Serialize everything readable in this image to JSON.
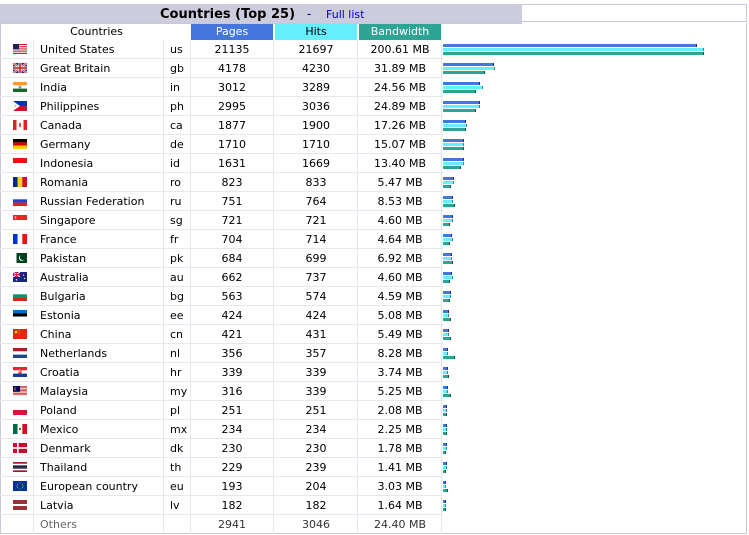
{
  "header": {
    "title": "Countries (Top 25)",
    "separator": "-",
    "full_list_link": "Full list"
  },
  "columns": {
    "countries": "Countries",
    "pages": "Pages",
    "hits": "Hits",
    "bandwidth": "Bandwidth"
  },
  "colors": {
    "pages": "#4477dd",
    "hits": "#66f0ff",
    "bandwidth": "#2ea495",
    "titlebar": "#ccccdd"
  },
  "rows": [
    {
      "country": "United States",
      "code": "us",
      "pages": "21135",
      "hits": "21697",
      "bandwidth": "200.61 MB",
      "flag": "us-flag-icon",
      "p": 21135,
      "h": 21697,
      "b": 200.61
    },
    {
      "country": "Great Britain",
      "code": "gb",
      "pages": "4178",
      "hits": "4230",
      "bandwidth": "31.89 MB",
      "flag": "gb-flag-icon",
      "p": 4178,
      "h": 4230,
      "b": 31.89
    },
    {
      "country": "India",
      "code": "in",
      "pages": "3012",
      "hits": "3289",
      "bandwidth": "24.56 MB",
      "flag": "in-flag-icon",
      "p": 3012,
      "h": 3289,
      "b": 24.56
    },
    {
      "country": "Philippines",
      "code": "ph",
      "pages": "2995",
      "hits": "3036",
      "bandwidth": "24.89 MB",
      "flag": "ph-flag-icon",
      "p": 2995,
      "h": 3036,
      "b": 24.89
    },
    {
      "country": "Canada",
      "code": "ca",
      "pages": "1877",
      "hits": "1900",
      "bandwidth": "17.26 MB",
      "flag": "ca-flag-icon",
      "p": 1877,
      "h": 1900,
      "b": 17.26
    },
    {
      "country": "Germany",
      "code": "de",
      "pages": "1710",
      "hits": "1710",
      "bandwidth": "15.07 MB",
      "flag": "de-flag-icon",
      "p": 1710,
      "h": 1710,
      "b": 15.07
    },
    {
      "country": "Indonesia",
      "code": "id",
      "pages": "1631",
      "hits": "1669",
      "bandwidth": "13.40 MB",
      "flag": "id-flag-icon",
      "p": 1631,
      "h": 1669,
      "b": 13.4
    },
    {
      "country": "Romania",
      "code": "ro",
      "pages": "823",
      "hits": "833",
      "bandwidth": "5.47 MB",
      "flag": "ro-flag-icon",
      "p": 823,
      "h": 833,
      "b": 5.47
    },
    {
      "country": "Russian Federation",
      "code": "ru",
      "pages": "751",
      "hits": "764",
      "bandwidth": "8.53 MB",
      "flag": "ru-flag-icon",
      "p": 751,
      "h": 764,
      "b": 8.53
    },
    {
      "country": "Singapore",
      "code": "sg",
      "pages": "721",
      "hits": "721",
      "bandwidth": "4.60 MB",
      "flag": "sg-flag-icon",
      "p": 721,
      "h": 721,
      "b": 4.6
    },
    {
      "country": "France",
      "code": "fr",
      "pages": "704",
      "hits": "714",
      "bandwidth": "4.64 MB",
      "flag": "fr-flag-icon",
      "p": 704,
      "h": 714,
      "b": 4.64
    },
    {
      "country": "Pakistan",
      "code": "pk",
      "pages": "684",
      "hits": "699",
      "bandwidth": "6.92 MB",
      "flag": "pk-flag-icon",
      "p": 684,
      "h": 699,
      "b": 6.92
    },
    {
      "country": "Australia",
      "code": "au",
      "pages": "662",
      "hits": "737",
      "bandwidth": "4.60 MB",
      "flag": "au-flag-icon",
      "p": 662,
      "h": 737,
      "b": 4.6
    },
    {
      "country": "Bulgaria",
      "code": "bg",
      "pages": "563",
      "hits": "574",
      "bandwidth": "4.59 MB",
      "flag": "bg-flag-icon",
      "p": 563,
      "h": 574,
      "b": 4.59
    },
    {
      "country": "Estonia",
      "code": "ee",
      "pages": "424",
      "hits": "424",
      "bandwidth": "5.08 MB",
      "flag": "ee-flag-icon",
      "p": 424,
      "h": 424,
      "b": 5.08
    },
    {
      "country": "China",
      "code": "cn",
      "pages": "421",
      "hits": "431",
      "bandwidth": "5.49 MB",
      "flag": "cn-flag-icon",
      "p": 421,
      "h": 431,
      "b": 5.49
    },
    {
      "country": "Netherlands",
      "code": "nl",
      "pages": "356",
      "hits": "357",
      "bandwidth": "8.28 MB",
      "flag": "nl-flag-icon",
      "p": 356,
      "h": 357,
      "b": 8.28
    },
    {
      "country": "Croatia",
      "code": "hr",
      "pages": "339",
      "hits": "339",
      "bandwidth": "3.74 MB",
      "flag": "hr-flag-icon",
      "p": 339,
      "h": 339,
      "b": 3.74
    },
    {
      "country": "Malaysia",
      "code": "my",
      "pages": "316",
      "hits": "339",
      "bandwidth": "5.25 MB",
      "flag": "my-flag-icon",
      "p": 316,
      "h": 339,
      "b": 5.25
    },
    {
      "country": "Poland",
      "code": "pl",
      "pages": "251",
      "hits": "251",
      "bandwidth": "2.08 MB",
      "flag": "pl-flag-icon",
      "p": 251,
      "h": 251,
      "b": 2.08
    },
    {
      "country": "Mexico",
      "code": "mx",
      "pages": "234",
      "hits": "234",
      "bandwidth": "2.25 MB",
      "flag": "mx-flag-icon",
      "p": 234,
      "h": 234,
      "b": 2.25
    },
    {
      "country": "Denmark",
      "code": "dk",
      "pages": "230",
      "hits": "230",
      "bandwidth": "1.78 MB",
      "flag": "dk-flag-icon",
      "p": 230,
      "h": 230,
      "b": 1.78
    },
    {
      "country": "Thailand",
      "code": "th",
      "pages": "229",
      "hits": "239",
      "bandwidth": "1.41 MB",
      "flag": "th-flag-icon",
      "p": 229,
      "h": 239,
      "b": 1.41
    },
    {
      "country": "European country",
      "code": "eu",
      "pages": "193",
      "hits": "204",
      "bandwidth": "3.03 MB",
      "flag": "eu-flag-icon",
      "p": 193,
      "h": 204,
      "b": 3.03
    },
    {
      "country": "Latvia",
      "code": "lv",
      "pages": "182",
      "hits": "182",
      "bandwidth": "1.64 MB",
      "flag": "lv-flag-icon",
      "p": 182,
      "h": 182,
      "b": 1.64
    }
  ],
  "others": {
    "label": "Others",
    "pages": "2941",
    "hits": "3046",
    "bandwidth": "24.40 MB"
  }
}
